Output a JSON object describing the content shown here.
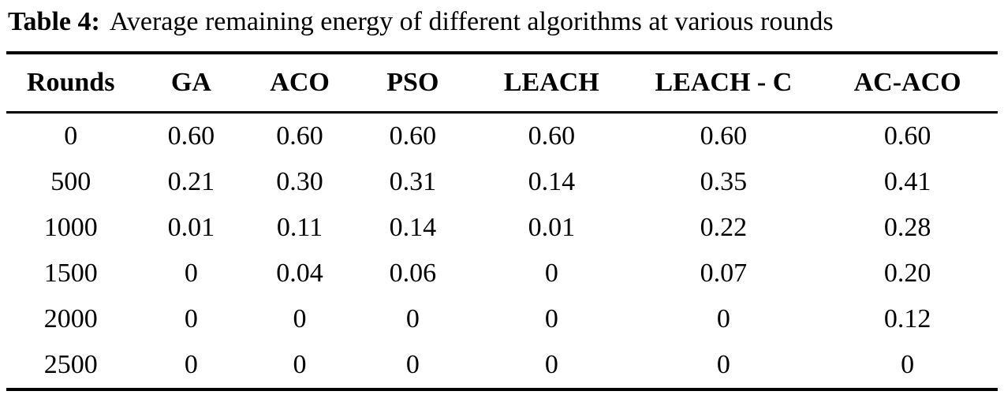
{
  "caption": {
    "label": "Table 4:",
    "text": "Average remaining energy of different algorithms at various rounds"
  },
  "chart_data": {
    "type": "table",
    "title": "Average remaining energy of different algorithms at various rounds",
    "columns": [
      "Rounds",
      "GA",
      "ACO",
      "PSO",
      "LEACH",
      "LEACH - C",
      "AC-ACO"
    ],
    "rows": [
      [
        "0",
        "0.60",
        "0.60",
        "0.60",
        "0.60",
        "0.60",
        "0.60"
      ],
      [
        "500",
        "0.21",
        "0.30",
        "0.31",
        "0.14",
        "0.35",
        "0.41"
      ],
      [
        "1000",
        "0.01",
        "0.11",
        "0.14",
        "0.01",
        "0.22",
        "0.28"
      ],
      [
        "1500",
        "0",
        "0.04",
        "0.06",
        "0",
        "0.07",
        "0.20"
      ],
      [
        "2000",
        "0",
        "0",
        "0",
        "0",
        "0",
        "0.12"
      ],
      [
        "2500",
        "0",
        "0",
        "0",
        "0",
        "0",
        "0"
      ]
    ]
  },
  "colors": {
    "text": "#000000",
    "background": "#ffffff",
    "rule": "#000000"
  }
}
